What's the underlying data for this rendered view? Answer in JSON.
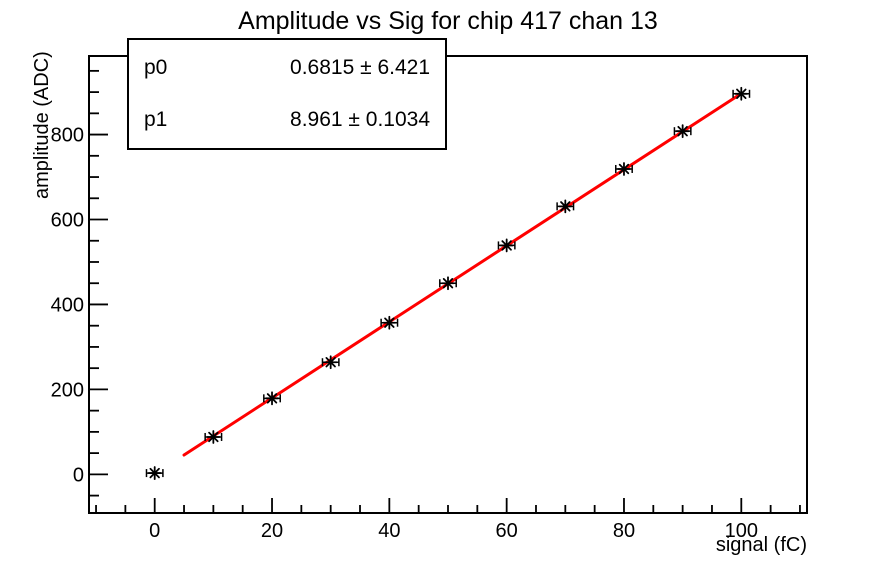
{
  "title": "Amplitude vs Sig for chip 417 chan 13",
  "stats": {
    "rows": [
      {
        "name": "p0",
        "value": "0.6815 ± 6.421"
      },
      {
        "name": "p1",
        "value": "8.961 ± 0.1034"
      }
    ]
  },
  "axes": {
    "x": {
      "title": "signal (fC)",
      "major_ticks": [
        0,
        20,
        40,
        60,
        80,
        100
      ],
      "minor_step": 5,
      "range": [
        -11.2,
        111.2
      ]
    },
    "y": {
      "title": "amplitude (ADC)",
      "major_ticks": [
        0,
        200,
        400,
        600,
        800
      ],
      "minor_step": 50,
      "range": [
        -91,
        985
      ]
    }
  },
  "chart_data": {
    "type": "scatter",
    "title": "Amplitude vs Sig for chip 417 chan 13",
    "xlabel": "signal (fC)",
    "ylabel": "amplitude (ADC)",
    "x": [
      0,
      10,
      20,
      30,
      40,
      50,
      60,
      70,
      80,
      90,
      100
    ],
    "y": [
      3,
      88,
      179,
      264,
      357,
      450,
      539,
      631,
      719,
      808,
      896
    ],
    "xerr": 1.4,
    "xlim": [
      -11.2,
      111.2
    ],
    "ylim": [
      -91,
      985
    ],
    "x_major_ticks": [
      0,
      20,
      40,
      60,
      80,
      100
    ],
    "y_major_ticks": [
      0,
      200,
      400,
      600,
      800
    ],
    "grid": false,
    "marker": {
      "style": "star",
      "color": "#000000"
    },
    "fit": {
      "type": "linear",
      "p0": 0.6815,
      "p0_err": 6.421,
      "p1": 8.961,
      "p1_err": 0.1034,
      "x_range": [
        5,
        100
      ],
      "color": "#ff0000"
    },
    "legend_position": "stats-box-top-left"
  },
  "colors": {
    "background": "#ffffff",
    "frame": "#000000",
    "text": "#000000",
    "fit_line": "#ff0000",
    "marker": "#000000"
  }
}
